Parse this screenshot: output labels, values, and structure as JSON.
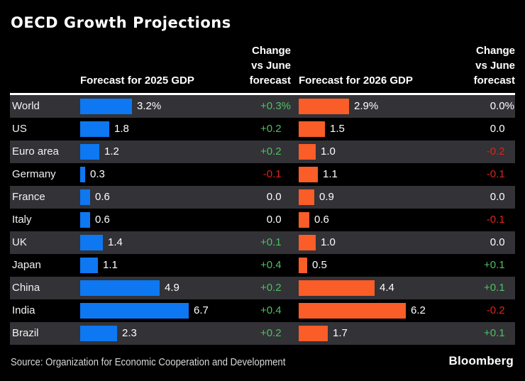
{
  "title": "OECD Growth Projections",
  "columns": {
    "gdp2025": "Forecast for 2025 GDP",
    "gdp2026": "Forecast for 2026 GDP",
    "change_lines": [
      "Change",
      "vs June",
      "forecast"
    ]
  },
  "footer": {
    "source": "Source: Organization for Economic Cooperation and Development",
    "brand": "Bloomberg"
  },
  "colors": {
    "background": "#000000",
    "row_stripe": "#323237",
    "bar_2025": "#0d78f2",
    "bar_2026": "#fa5d28",
    "positive": "#4dc15f",
    "negative": "#de2418",
    "neutral": "#ffffff"
  },
  "chart_data": {
    "type": "bar",
    "title": "OECD Growth Projections",
    "categories": [
      "World",
      "US",
      "Euro area",
      "Germany",
      "France",
      "Italy",
      "UK",
      "Japan",
      "China",
      "India",
      "Brazil"
    ],
    "series": [
      {
        "name": "Forecast for 2025 GDP",
        "color": "#0d78f2",
        "values": [
          3.2,
          1.8,
          1.2,
          0.3,
          0.6,
          0.6,
          1.4,
          1.1,
          4.9,
          6.7,
          2.3
        ],
        "labels": [
          "3.2%",
          "1.8",
          "1.2",
          "0.3",
          "0.6",
          "0.6",
          "1.4",
          "1.1",
          "4.9",
          "6.7",
          "2.3"
        ]
      },
      {
        "name": "Change vs June forecast (2025)",
        "values": [
          0.3,
          0.2,
          0.2,
          -0.1,
          0.0,
          0.0,
          0.1,
          0.4,
          0.2,
          0.4,
          0.2
        ],
        "labels": [
          "+0.3%",
          "+0.2",
          "+0.2",
          "-0.1",
          "0.0",
          "0.0",
          "+0.1",
          "+0.4",
          "+0.2",
          "+0.4",
          "+0.2"
        ]
      },
      {
        "name": "Forecast for 2026 GDP",
        "color": "#fa5d28",
        "values": [
          2.9,
          1.5,
          1.0,
          1.1,
          0.9,
          0.6,
          1.0,
          0.5,
          4.4,
          6.2,
          1.7
        ],
        "labels": [
          "2.9%",
          "1.5",
          "1.0",
          "1.1",
          "0.9",
          "0.6",
          "1.0",
          "0.5",
          "4.4",
          "6.2",
          "1.7"
        ]
      },
      {
        "name": "Change vs June forecast (2026)",
        "values": [
          0.0,
          0.0,
          -0.2,
          -0.1,
          0.0,
          -0.1,
          0.0,
          0.1,
          0.1,
          -0.2,
          0.1
        ],
        "labels": [
          "0.0%",
          "0.0",
          "-0.2",
          "-0.1",
          "0.0",
          "-0.1",
          "0.0",
          "+0.1",
          "+0.1",
          "-0.2",
          "+0.1"
        ]
      }
    ],
    "layout": {
      "bar_direction": "horizontal",
      "legend": "none",
      "grid": false,
      "row_striping": true,
      "value_labels": "end-of-bar"
    }
  }
}
